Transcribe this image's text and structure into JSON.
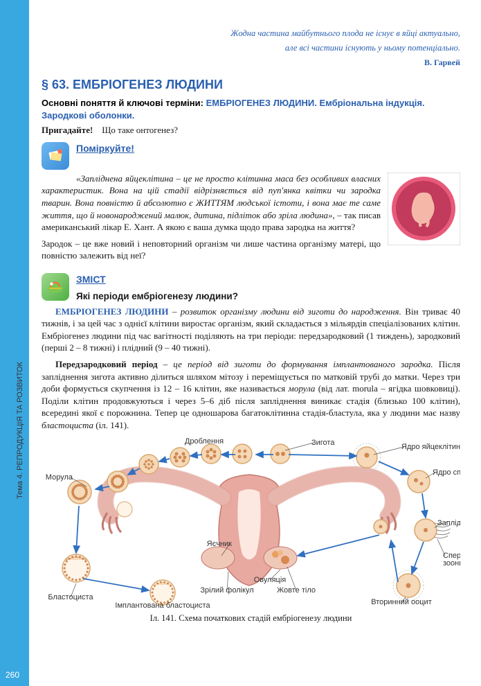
{
  "page_number": "260",
  "sidebar_label": "Тема 4. РЕПРОДУКЦІЯ ТА РОЗВИТОК",
  "epigraph_line1": "Жодна частина майбутнього плода не існує в яйці актуально,",
  "epigraph_line2": "але всі частини існують у ньому потенціально.",
  "epigraph_author": "В. Гарвей",
  "section_title": "§ 63.  ЕМБРІОГЕНЕЗ ЛЮДИНИ",
  "key_terms_label": "Основні поняття й ключові терміни:",
  "key_terms_text": "ЕМБРІОГЕНЕЗ ЛЮДИНИ. Ембріо­нальна індукція. Зародкові оболонки.",
  "recall_label": "Пригадайте!",
  "recall_text": "Що таке онтогенез?",
  "think_heading": "Поміркуйте!",
  "think_quote": "«Запліднена яйцеклітина – це не просто клітинна маса без особливих власних характеристик. Вона на цій ста­дії відрізняється від пуп'янка квітки чи зародка тварин. Вона повністю й абсолютно є ЖИТТЯМ людської істоти, і вона має те саме життя, що й новонароджений малюк, дитина, підліток або зріла людина»,",
  "think_after": " – так писав американський лікар Е. Хант. А якою є ваша думка щодо права зародка на життя?",
  "think_q": "Зародок – це вже новий і неповторний організм чи лише частина організму ма­тері, що повністю залежить від неї?",
  "zmist_heading": "ЗМІСТ",
  "zmist_q": "Які періоди ембріогенезу людини?",
  "p1_lead": "ЕМБРІОГЕНЕЗ ЛЮДИНИ",
  "p1_rest": " – розвиток організму людини від зиготи до народ­ження.",
  "p1_cont": " Він триває 40 тижнів, і за цей час з однієї клітини виростає організм, який складається з мільярдів спеціалізованих клітин. Ембріогенез людини під час ва­гітності поділяють на три періоди: передзародковий (1 тиждень), зародковий (перші 2 – 8 тижні) і плідний (9 – 40 тижні).",
  "p2_lead": "Передзародковий період",
  "p2_ital": " – це період від зиготи до формування імпланто­ваного зародка.",
  "p2_rest": " Після запліднення зигота активно ділиться шляхом мітозу і пере­міщується по матковій трубі до матки. Через три доби формується скупчення із 12 – 16 клітин, яке називається ",
  "p2_morula": "морула",
  "p2_lat": " (від лат. morula – ягідка шовковиці). Поділи клітин продовжуються і через 5–6 діб після запліднення виникає стадія (близько 100 клітин), всередині якої є порожнина. Тепер це одношарова багатоклітинна стадія-бластула, яка у людини має назву ",
  "p2_blast": "бластоциста",
  "p2_end": " (іл. 141).",
  "caption": "Іл. 141. Схема початкових стадій ембріогенезу людини",
  "diagram": {
    "uterus_fill": "#e8a9a0",
    "uterus_dark": "#c47a70",
    "tube_fill": "#f4c9c0",
    "cell_fill": "#f5d9b8",
    "cell_stroke": "#d9a66b",
    "nucleus": "#d08850",
    "arrow": "#3070c0",
    "label_color": "#333",
    "labels": {
      "droblennya": "Дроблення",
      "morula": "Морула",
      "blastocysta": "Бластоциста",
      "implant": "Імплантована бластоциста",
      "zrilyj": "Зрілий фолікул",
      "yaechnyk": "Яєчник",
      "ovulyaciya": "Овуляція",
      "zhovte": "Жовте тіло",
      "zygota": "Зигота",
      "yadro_yayce": "Ядро яйцеклітини",
      "yadro_sperm": "Ядро сперматозоона",
      "zaplidnennya": "Запліднення",
      "spermato": "Спермато-\nзоони",
      "vtorynnyy": "Вторинний ооцит"
    }
  }
}
